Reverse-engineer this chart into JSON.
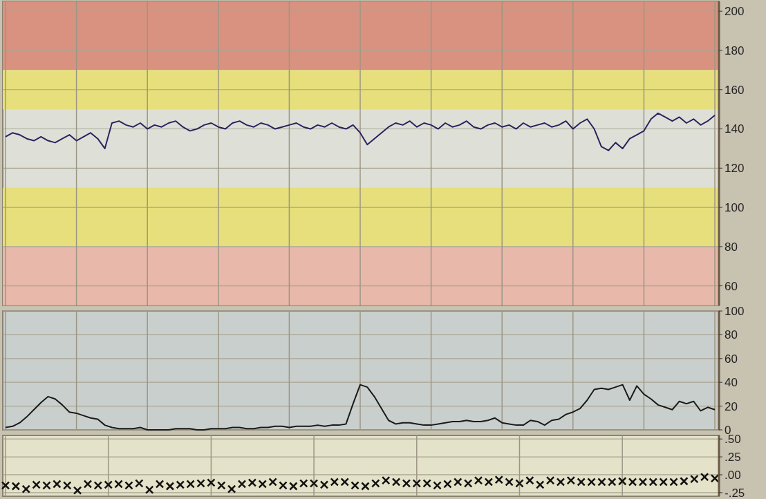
{
  "chart_data": [
    {
      "type": "line",
      "color": "#2a2260",
      "ylim": [
        50,
        205
      ],
      "yticks": [
        60,
        80,
        100,
        120,
        140,
        160,
        180,
        200
      ],
      "grid": true,
      "bands": [
        {
          "axis": "y",
          "from": 170,
          "to": 205,
          "color": "#d9927f"
        },
        {
          "axis": "y",
          "from": 150,
          "to": 170,
          "color": "#e6df7c"
        },
        {
          "axis": "y",
          "from": 80,
          "to": 110,
          "color": "#e6df7c"
        },
        {
          "axis": "y",
          "from": 50,
          "to": 80,
          "color": "#e8b8aa"
        }
      ],
      "categories": [
        null,
        null,
        null,
        null,
        null,
        null,
        null,
        null,
        null,
        null,
        null,
        null,
        null,
        null,
        null,
        null,
        null,
        null,
        null,
        null,
        null,
        null,
        null,
        null,
        null,
        null,
        null,
        null,
        null,
        null,
        null,
        null,
        null,
        null,
        null,
        null,
        null,
        null,
        null,
        null,
        null,
        null,
        null,
        null,
        null,
        null,
        null,
        null,
        null,
        null,
        null,
        null,
        null,
        null,
        null,
        null,
        null,
        null,
        null,
        null,
        null,
        null,
        null,
        null,
        null,
        null,
        null,
        null,
        null,
        null,
        null,
        null,
        null,
        null,
        null,
        null,
        null,
        null,
        null,
        null,
        null,
        null,
        null,
        null,
        null,
        null,
        null,
        null,
        null,
        null,
        null,
        null,
        null,
        null,
        null,
        null,
        null,
        null,
        null,
        null,
        null
      ],
      "values": [
        136,
        138,
        137,
        135,
        134,
        136,
        134,
        133,
        135,
        137,
        134,
        136,
        138,
        135,
        130,
        143,
        144,
        142,
        141,
        143,
        140,
        142,
        141,
        143,
        144,
        141,
        139,
        140,
        142,
        143,
        141,
        140,
        143,
        144,
        142,
        141,
        143,
        142,
        140,
        141,
        142,
        143,
        141,
        140,
        142,
        141,
        143,
        141,
        140,
        142,
        138,
        132,
        135,
        138,
        141,
        143,
        142,
        144,
        141,
        143,
        142,
        140,
        143,
        141,
        142,
        144,
        141,
        140,
        142,
        143,
        141,
        142,
        140,
        143,
        141,
        142,
        143,
        141,
        142,
        144,
        140,
        143,
        145,
        140,
        131,
        129,
        133,
        130,
        135,
        137,
        139,
        145,
        148,
        146,
        144,
        146,
        143,
        145,
        142,
        144,
        147
      ]
    },
    {
      "type": "line",
      "color": "#1a1a1a",
      "ylim": [
        0,
        100
      ],
      "yticks": [
        0,
        20,
        40,
        60,
        80,
        100
      ],
      "grid": true,
      "categories": [
        null,
        null,
        null,
        null,
        null,
        null,
        null,
        null,
        null,
        null,
        null,
        null,
        null,
        null,
        null,
        null,
        null,
        null,
        null,
        null,
        null,
        null,
        null,
        null,
        null,
        null,
        null,
        null,
        null,
        null,
        null,
        null,
        null,
        null,
        null,
        null,
        null,
        null,
        null,
        null,
        null,
        null,
        null,
        null,
        null,
        null,
        null,
        null,
        null,
        null,
        null,
        null,
        null,
        null,
        null,
        null,
        null,
        null,
        null,
        null,
        null,
        null,
        null,
        null,
        null,
        null,
        null,
        null,
        null,
        null,
        null,
        null,
        null,
        null,
        null,
        null,
        null,
        null,
        null,
        null,
        null,
        null,
        null,
        null,
        null,
        null,
        null,
        null,
        null,
        null,
        null,
        null,
        null,
        null,
        null,
        null,
        null,
        null,
        null,
        null,
        null
      ],
      "values": [
        2,
        3,
        6,
        11,
        17,
        23,
        28,
        26,
        21,
        15,
        14,
        12,
        10,
        9,
        4,
        2,
        1,
        1,
        1,
        2,
        0,
        0,
        0,
        0,
        1,
        1,
        1,
        0,
        0,
        1,
        1,
        1,
        2,
        2,
        1,
        1,
        2,
        2,
        3,
        3,
        2,
        3,
        3,
        3,
        4,
        3,
        4,
        4,
        5,
        22,
        38,
        36,
        28,
        18,
        8,
        5,
        6,
        6,
        5,
        4,
        4,
        5,
        6,
        7,
        7,
        8,
        7,
        7,
        8,
        10,
        6,
        5,
        4,
        4,
        8,
        7,
        4,
        8,
        9,
        13,
        15,
        18,
        25,
        34,
        35,
        34,
        36,
        38,
        25,
        37,
        30,
        26,
        21,
        19,
        17,
        24,
        22,
        24,
        16,
        19,
        17
      ]
    },
    {
      "type": "scatter",
      "marker": "cross",
      "color": "#111111",
      "ylim": [
        -0.3,
        0.55
      ],
      "grid": true,
      "yticks": [
        {
          "value": 0.5,
          "label": ".50"
        },
        {
          "value": 0.25,
          "label": ".25"
        },
        {
          "value": 0,
          "label": ".00"
        },
        {
          "value": -0.25,
          "label": "-.25"
        }
      ],
      "categories": [
        null,
        null,
        null,
        null,
        null,
        null,
        null,
        null,
        null,
        null,
        null,
        null,
        null,
        null,
        null,
        null,
        null,
        null,
        null,
        null,
        null,
        null,
        null,
        null,
        null,
        null,
        null,
        null,
        null,
        null,
        null,
        null,
        null,
        null,
        null,
        null,
        null,
        null,
        null,
        null,
        null,
        null,
        null,
        null,
        null,
        null,
        null,
        null,
        null,
        null,
        null,
        null,
        null,
        null,
        null,
        null,
        null,
        null,
        null,
        null,
        null,
        null,
        null,
        null,
        null,
        null,
        null,
        null,
        null,
        null
      ],
      "values": [
        -0.15,
        -0.16,
        -0.2,
        -0.14,
        -0.15,
        -0.13,
        -0.15,
        -0.22,
        -0.13,
        -0.15,
        -0.14,
        -0.13,
        -0.15,
        -0.12,
        -0.21,
        -0.13,
        -0.16,
        -0.14,
        -0.13,
        -0.12,
        -0.11,
        -0.15,
        -0.2,
        -0.13,
        -0.11,
        -0.13,
        -0.1,
        -0.15,
        -0.16,
        -0.12,
        -0.12,
        -0.14,
        -0.1,
        -0.1,
        -0.15,
        -0.16,
        -0.12,
        -0.08,
        -0.1,
        -0.12,
        -0.12,
        -0.12,
        -0.15,
        -0.13,
        -0.1,
        -0.12,
        -0.08,
        -0.1,
        -0.07,
        -0.1,
        -0.12,
        -0.08,
        -0.14,
        -0.08,
        -0.1,
        -0.08,
        -0.1,
        -0.1,
        -0.1,
        -0.1,
        -0.09,
        -0.1,
        -0.1,
        -0.1,
        -0.1,
        -0.1,
        -0.09,
        -0.06,
        -0.03,
        -0.05
      ]
    }
  ]
}
